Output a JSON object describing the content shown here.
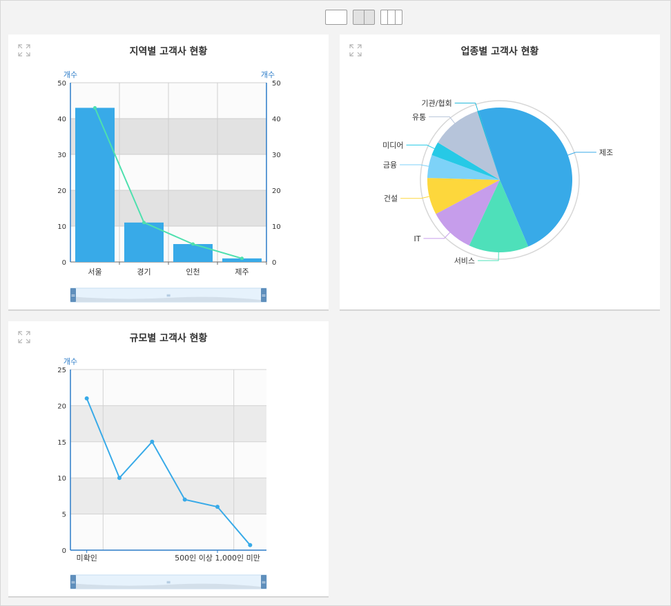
{
  "layout_switcher": [
    {
      "name": "layout-1col-button",
      "cols": 1,
      "active": false
    },
    {
      "name": "layout-2col-button",
      "cols": 2,
      "active": true
    },
    {
      "name": "layout-3col-button",
      "cols": 3,
      "active": false
    }
  ],
  "panels": {
    "region": {
      "title": "지역별 고객사 현황"
    },
    "industry": {
      "title": "업종별 고객사 현황"
    },
    "size": {
      "title": "규모별 고객사 현황"
    }
  },
  "chart_data": [
    {
      "type": "bar",
      "title": "지역별 고객사 현황",
      "categories": [
        "서울",
        "경기",
        "인천",
        "제주"
      ],
      "series": [
        {
          "type": "bar",
          "values": [
            43,
            11,
            5,
            1
          ],
          "color": "#38aae8"
        },
        {
          "type": "line",
          "values": [
            43,
            11,
            5,
            1
          ],
          "color": "#4ee0ae"
        }
      ],
      "ylabel_left": "개수",
      "ylabel_right": "개수",
      "ylim": [
        0,
        50
      ],
      "yticks": [
        0,
        10,
        20,
        30,
        40,
        50
      ],
      "grid": true
    },
    {
      "type": "pie",
      "title": "업종별 고객사 현황",
      "slices": [
        {
          "label": "제조",
          "value": 47,
          "color": "#38aae8"
        },
        {
          "label": "서비스",
          "value": 13,
          "color": "#4ee0ba"
        },
        {
          "label": "IT",
          "value": 10,
          "color": "#c69deb"
        },
        {
          "label": "건설",
          "value": 8,
          "color": "#fdd73c"
        },
        {
          "label": "금융",
          "value": 5,
          "color": "#7dd2f8"
        },
        {
          "label": "미디어",
          "value": 3,
          "color": "#26c9e6"
        },
        {
          "label": "유통",
          "value": 11,
          "color": "#b6c4da"
        },
        {
          "label": "기관/협회",
          "value": 0.3,
          "color": "#22b8da"
        }
      ]
    },
    {
      "type": "line",
      "title": "규모별 고객사 현황",
      "categories": [
        "미확인",
        "",
        "",
        "",
        "500인 이상 1,000인 미만",
        ""
      ],
      "values": [
        21,
        10,
        15,
        7,
        6,
        0.7
      ],
      "color": "#38aae8",
      "ylabel": "개수",
      "ylim": [
        0,
        25
      ],
      "yticks": [
        0,
        5,
        10,
        15,
        20,
        25
      ],
      "grid": true
    }
  ]
}
